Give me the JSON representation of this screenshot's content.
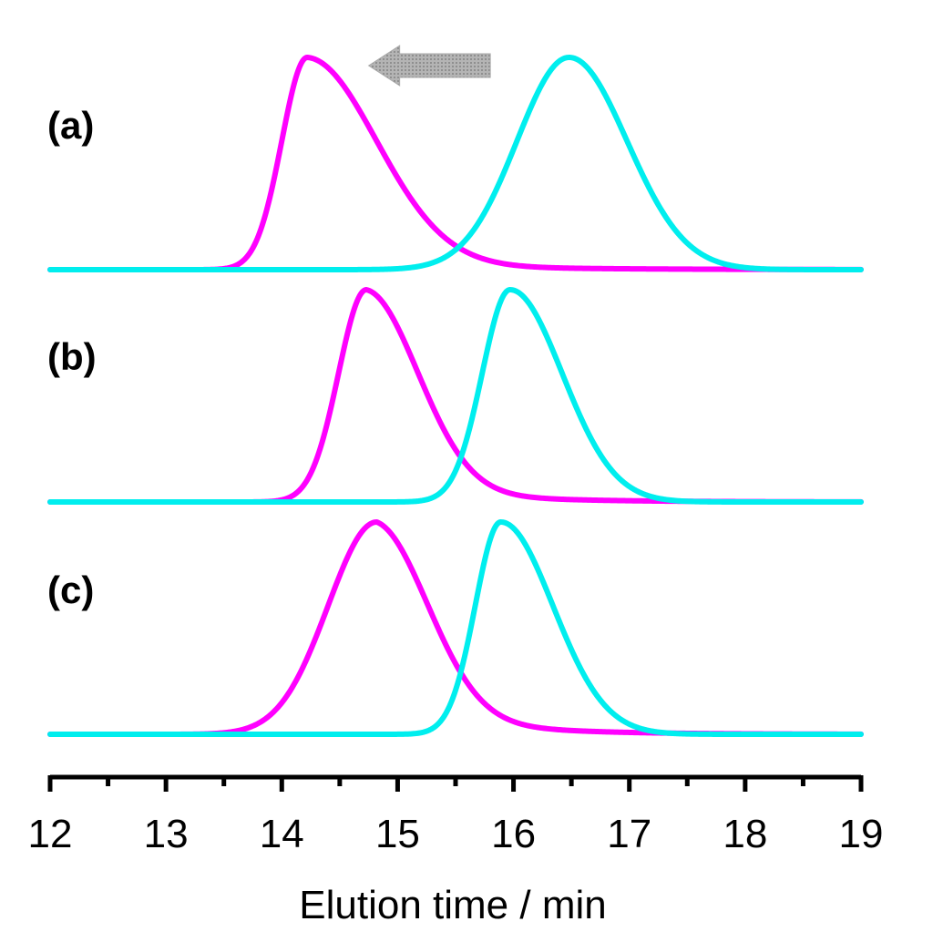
{
  "chart_data": {
    "type": "line",
    "title": "",
    "xlabel": "Elution time / min",
    "ylabel": "",
    "xlim": [
      12,
      19
    ],
    "ylim": [
      0,
      1
    ],
    "grid": false,
    "x_ticks_major": [
      12,
      13,
      14,
      15,
      16,
      17,
      18,
      19
    ],
    "x_tick_labels": [
      "12",
      "13",
      "14",
      "15",
      "16",
      "17",
      "18",
      "19"
    ],
    "x_ticks_minor": [
      12.5,
      13.5,
      14.5,
      15.5,
      16.5,
      17.5,
      18.5
    ],
    "annotation": {
      "type": "arrow",
      "direction": "left",
      "x_from": 15.8,
      "x_to": 14.75,
      "color": "#a9a9a9"
    },
    "panels": [
      {
        "label": "(a)",
        "series": [
          {
            "name": "magenta trace",
            "color": "#ff00ff",
            "peak_x": 14.22,
            "peak_y": 1.0,
            "sigma_left": 0.22,
            "sigma_right": 0.6,
            "tail_height": 0.05,
            "tail_decay": 1.1
          },
          {
            "name": "cyan trace",
            "color": "#00eeee",
            "peak_x": 16.48,
            "peak_y": 1.0,
            "sigma_left": 0.45,
            "sigma_right": 0.5,
            "tail_height": 0.0,
            "tail_decay": 1.0
          }
        ]
      },
      {
        "label": "(b)",
        "series": [
          {
            "name": "magenta trace",
            "color": "#ff00ff",
            "peak_x": 14.73,
            "peak_y": 1.0,
            "sigma_left": 0.24,
            "sigma_right": 0.45,
            "tail_height": 0.1,
            "tail_decay": 0.8
          },
          {
            "name": "cyan trace",
            "color": "#00eeee",
            "peak_x": 15.97,
            "peak_y": 1.0,
            "sigma_left": 0.24,
            "sigma_right": 0.45,
            "tail_height": 0.0,
            "tail_decay": 1.0
          }
        ]
      },
      {
        "label": "(c)",
        "series": [
          {
            "name": "magenta trace",
            "color": "#ff00ff",
            "peak_x": 14.82,
            "peak_y": 1.0,
            "sigma_left": 0.42,
            "sigma_right": 0.45,
            "tail_height": 0.16,
            "tail_decay": 0.75
          },
          {
            "name": "cyan trace",
            "color": "#00eeee",
            "peak_x": 15.89,
            "peak_y": 1.0,
            "sigma_left": 0.22,
            "sigma_right": 0.45,
            "tail_height": 0.0,
            "tail_decay": 1.0
          }
        ]
      }
    ]
  }
}
